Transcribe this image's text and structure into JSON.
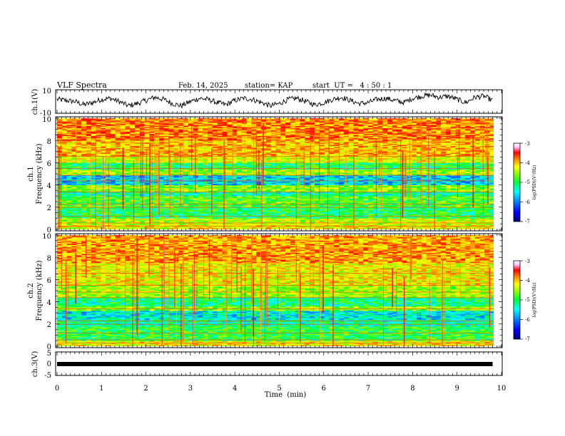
{
  "header": {
    "title": "VLF Spectra",
    "date": "Feb. 14, 2025",
    "station": "station= KAP",
    "start": "start  UT =   4 : 50 : 1"
  },
  "colors": {
    "colormap": [
      "#000080",
      "#0000ff",
      "#0080ff",
      "#00ffff",
      "#00ff40",
      "#80ff00",
      "#ffff00",
      "#ff8000",
      "#ff0000",
      "#ffc0ff",
      "#ffffff"
    ]
  },
  "chart_data": [
    {
      "type": "line",
      "panel": "ch1",
      "ylabel": "ch.1(V)",
      "ylim": [
        -10,
        10
      ],
      "yticks": [
        "10",
        "-10"
      ],
      "x": [
        0,
        0.2,
        0.4,
        0.6,
        0.8,
        1.0,
        1.2,
        1.4,
        1.6,
        1.8,
        2.0,
        2.2,
        2.4,
        2.6,
        2.8,
        3.0,
        3.2,
        3.4,
        3.6,
        3.8,
        4.0,
        4.2,
        4.4,
        4.6,
        4.8,
        5.0,
        5.2,
        5.4,
        5.6,
        5.8,
        6.0,
        6.2,
        6.4,
        6.6,
        6.8,
        7.0,
        7.2,
        7.4,
        7.6,
        7.8,
        8.0,
        8.2,
        8.4,
        8.6,
        8.8,
        9.0,
        9.2,
        9.4,
        9.6,
        9.8
      ],
      "y": [
        2,
        1,
        0,
        -3,
        -1,
        2,
        3,
        0,
        -4,
        -2,
        1,
        4,
        2,
        -2,
        -4,
        0,
        3,
        2,
        -1,
        -3,
        1,
        3,
        2,
        -1,
        -4,
        -2,
        2,
        3,
        0,
        -3,
        -1,
        2,
        4,
        1,
        -2,
        -1,
        2,
        3,
        1,
        -1,
        3,
        5,
        6,
        4,
        5,
        2,
        -1,
        4,
        5,
        1
      ]
    },
    {
      "type": "heatmap",
      "panel": "ch1-spectrogram",
      "ylabel": "ch.1\nFrequency (kHz)",
      "ylim": [
        0,
        10
      ],
      "yticks": [
        "0",
        "2",
        "4",
        "6",
        "8",
        "10"
      ],
      "colorbar": {
        "label": "log(PSD)(V²/Hz)",
        "range": [
          -7,
          -3
        ],
        "ticks": [
          "-3",
          "-4",
          "-5",
          "-6",
          "-7"
        ]
      },
      "bands": [
        {
          "from": 0.0,
          "to": 0.4,
          "value": -4.6
        },
        {
          "from": 0.4,
          "to": 1.0,
          "value": -4.8
        },
        {
          "from": 1.0,
          "to": 2.0,
          "value": -5.4
        },
        {
          "from": 2.0,
          "to": 3.0,
          "value": -5.2
        },
        {
          "from": 3.0,
          "to": 3.4,
          "value": -5.6
        },
        {
          "from": 3.4,
          "to": 4.0,
          "value": -5.0
        },
        {
          "from": 4.0,
          "to": 4.9,
          "value": -5.9
        },
        {
          "from": 4.9,
          "to": 5.4,
          "value": -4.9
        },
        {
          "from": 5.4,
          "to": 6.0,
          "value": -5.4
        },
        {
          "from": 6.0,
          "to": 6.6,
          "value": -4.7
        },
        {
          "from": 6.6,
          "to": 8.0,
          "value": -4.4
        },
        {
          "from": 8.0,
          "to": 10.0,
          "value": -4.2
        }
      ]
    },
    {
      "type": "heatmap",
      "panel": "ch2-spectrogram",
      "ylabel": "ch.2\nFrequency (kHz)",
      "ylim": [
        0,
        10
      ],
      "yticks": [
        "0",
        "2",
        "4",
        "6",
        "8",
        "10"
      ],
      "colorbar": {
        "label": "log(PSD)(V²/Hz)",
        "range": [
          -7,
          -3
        ],
        "ticks": [
          "-3",
          "-4",
          "-5",
          "-6",
          "-7"
        ]
      },
      "bands": [
        {
          "from": 0.0,
          "to": 0.5,
          "value": -4.6
        },
        {
          "from": 0.5,
          "to": 1.8,
          "value": -5.3
        },
        {
          "from": 1.8,
          "to": 2.4,
          "value": -5.6
        },
        {
          "from": 2.4,
          "to": 3.2,
          "value": -5.8
        },
        {
          "from": 3.2,
          "to": 3.6,
          "value": -5.0
        },
        {
          "from": 3.6,
          "to": 4.4,
          "value": -5.5
        },
        {
          "from": 4.4,
          "to": 5.5,
          "value": -4.9
        },
        {
          "from": 5.5,
          "to": 7.5,
          "value": -4.6
        },
        {
          "from": 7.5,
          "to": 10.0,
          "value": -4.3
        }
      ]
    },
    {
      "type": "line",
      "panel": "ch3",
      "ylabel": "ch.3(V)",
      "ylim": [
        -5,
        5
      ],
      "yticks": [
        "5",
        "0",
        "-5"
      ],
      "x": [
        0,
        9.8
      ],
      "y": [
        0,
        0
      ]
    }
  ],
  "xaxis": {
    "label": "Time  (min)",
    "xlim": [
      0,
      10
    ],
    "ticks": [
      "0",
      "1",
      "2",
      "3",
      "4",
      "5",
      "6",
      "7",
      "8",
      "9",
      "10"
    ]
  }
}
